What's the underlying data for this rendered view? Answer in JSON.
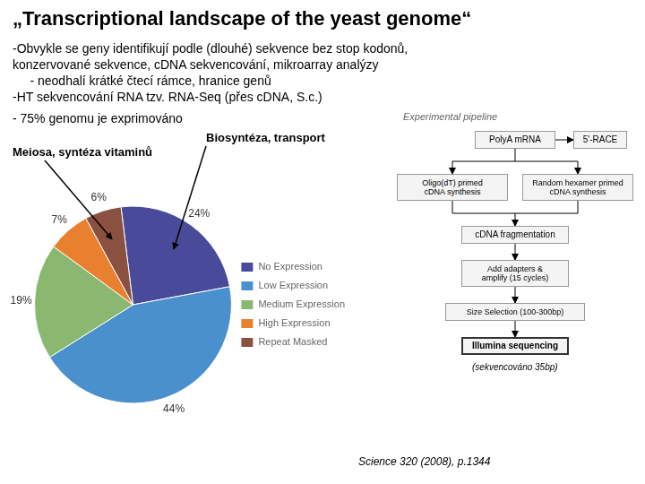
{
  "chart_data": {
    "type": "pie",
    "title": "„Transcriptional landscape of the yeast genome“",
    "categories": [
      "No Expression",
      "Low Expression",
      "Medium Expression",
      "High Expression",
      "Repeat Masked"
    ],
    "values": [
      24,
      44,
      19,
      7,
      6
    ],
    "value_labels": [
      "24%",
      "44%",
      "19%",
      "7%",
      "6%"
    ],
    "colors": [
      "#4a4a9a",
      "#4a90cc",
      "#8ab870",
      "#e88030",
      "#8a5040"
    ],
    "data_labels": true,
    "legend": "right",
    "annotations": [
      "-Obvykle se geny identifikují podle (dlouhé) sekvence bez stop kodonů,",
      "konzervované sekvence, cDNA sekvencování, mikroarray analýzy",
      "     - neodhalí krátké čtecí rámce, hranice genů",
      "-HT sekvencování RNA tzv. RNA-Seq (přes cDNA, S.c.)",
      "Experimental pipeline",
      "- 75% genomu je exprimováno",
      "Biosyntéza, transport",
      "Meiosa, syntéza vitaminů",
      "PolyA mRNA",
      "5'-RACE",
      "Oligo(dT) primed\ncDNA synthesis",
      "Random hexamer primed\ncDNA synthesis",
      "cDNA fragmentation",
      "Add adapters &\namplify (15 cycles)",
      "Size Selection (100-300bp)",
      "Illumina sequencing",
      "(sekvencováno 35bp)",
      "Science 320 (2008), p.1344"
    ]
  }
}
